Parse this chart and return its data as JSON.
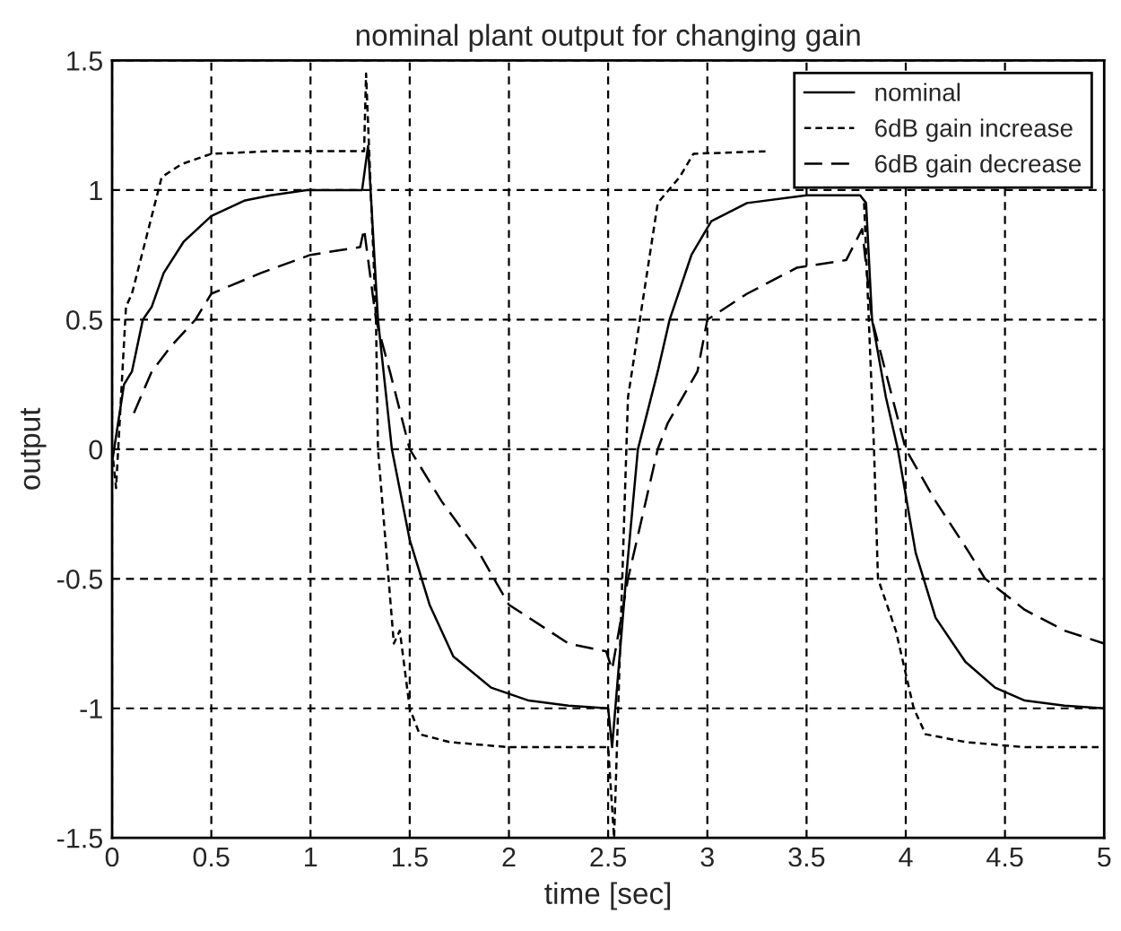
{
  "chart_data": {
    "type": "line",
    "title": "nominal plant output for changing gain",
    "xlabel": "time [sec]",
    "ylabel": "output",
    "xlim": [
      0,
      5
    ],
    "ylim": [
      -1.5,
      1.5
    ],
    "xticks": [
      0,
      0.5,
      1,
      1.5,
      2,
      2.5,
      3,
      3.5,
      4,
      4.5,
      5
    ],
    "yticks": [
      -1.5,
      -1,
      -0.5,
      0,
      0.5,
      1,
      1.5
    ],
    "grid": true,
    "legend": "top right",
    "series": [
      {
        "name": "nominal",
        "color": "#000000",
        "line_style": "solid",
        "x": [
          0,
          0.03,
          0.06,
          0.1,
          0.155,
          0.2,
          0.26,
          0.36,
          0.5,
          0.67,
          0.8,
          0.98,
          1.26,
          1.29,
          1.34,
          1.41,
          1.5,
          1.6,
          1.72,
          1.91,
          2.1,
          2.3,
          2.5,
          2.52,
          2.59,
          2.65,
          2.75,
          2.81,
          2.92,
          3.02,
          3.2,
          3.5,
          3.77,
          3.8,
          3.83,
          3.9,
          3.96,
          4.05,
          4.15,
          4.3,
          4.45,
          4.6,
          4.8,
          5
        ],
        "values": [
          -0.05,
          0.1,
          0.25,
          0.3,
          0.5,
          0.55,
          0.68,
          0.8,
          0.9,
          0.96,
          0.98,
          1.0,
          1.0,
          1.17,
          0.5,
          0.0,
          -0.35,
          -0.6,
          -0.8,
          -0.92,
          -0.97,
          -0.99,
          -1.0,
          -1.15,
          -0.5,
          0.0,
          0.3,
          0.5,
          0.75,
          0.88,
          0.95,
          0.98,
          0.98,
          0.95,
          0.5,
          0.2,
          0.0,
          -0.4,
          -0.65,
          -0.82,
          -0.92,
          -0.97,
          -0.99,
          -1.0
        ]
      },
      {
        "name": "6dB gain increase",
        "color": "#000000",
        "line_style": "dotted",
        "x": [
          0,
          0.02,
          0.07,
          0.1,
          0.15,
          0.2,
          0.25,
          0.35,
          0.5,
          0.8,
          1.27,
          1.28,
          1.33,
          1.34,
          1.42,
          1.45,
          1.5,
          1.55,
          1.7,
          2.0,
          2.5,
          2.53,
          2.6,
          2.67,
          2.75,
          2.86,
          2.93,
          3.3,
          3.77,
          3.79,
          3.84,
          3.86,
          3.95,
          4.04,
          4.1,
          4.3,
          4.6,
          5
        ],
        "values": [
          0,
          -0.15,
          0.55,
          0.6,
          0.75,
          0.9,
          1.05,
          1.1,
          1.14,
          1.15,
          1.15,
          1.45,
          0.5,
          0.0,
          -0.75,
          -0.7,
          -1.0,
          -1.1,
          -1.13,
          -1.15,
          -1.15,
          -1.5,
          0.2,
          0.55,
          0.95,
          1.05,
          1.14,
          1.15,
          null,
          0.95,
          0.0,
          -0.5,
          -0.7,
          -1.0,
          -1.1,
          -1.13,
          -1.15,
          -1.15
        ]
      },
      {
        "name": "6dB gain decrease",
        "color": "#000000",
        "line_style": "dashed",
        "x": [
          0.11,
          0.2,
          0.3,
          0.42,
          0.5,
          0.75,
          1.0,
          1.25,
          1.27,
          1.33,
          1.4,
          1.5,
          1.66,
          1.85,
          2.0,
          2.2,
          2.3,
          2.49,
          2.52,
          2.6,
          2.75,
          2.8,
          2.95,
          3.0,
          3.2,
          3.45,
          3.7,
          3.78,
          3.83,
          4.0,
          4.15,
          4.32,
          4.4,
          4.6,
          4.8,
          5
        ],
        "values": [
          0.14,
          0.3,
          0.4,
          0.5,
          0.6,
          0.68,
          0.75,
          0.78,
          0.85,
          0.5,
          0.3,
          0.0,
          -0.2,
          -0.4,
          -0.6,
          -0.7,
          -0.75,
          -0.78,
          -0.85,
          -0.5,
          0.0,
          0.1,
          0.3,
          0.5,
          0.6,
          0.7,
          0.73,
          0.85,
          0.5,
          0.0,
          -0.2,
          -0.4,
          -0.5,
          -0.62,
          -0.7,
          -0.75
        ]
      }
    ]
  }
}
